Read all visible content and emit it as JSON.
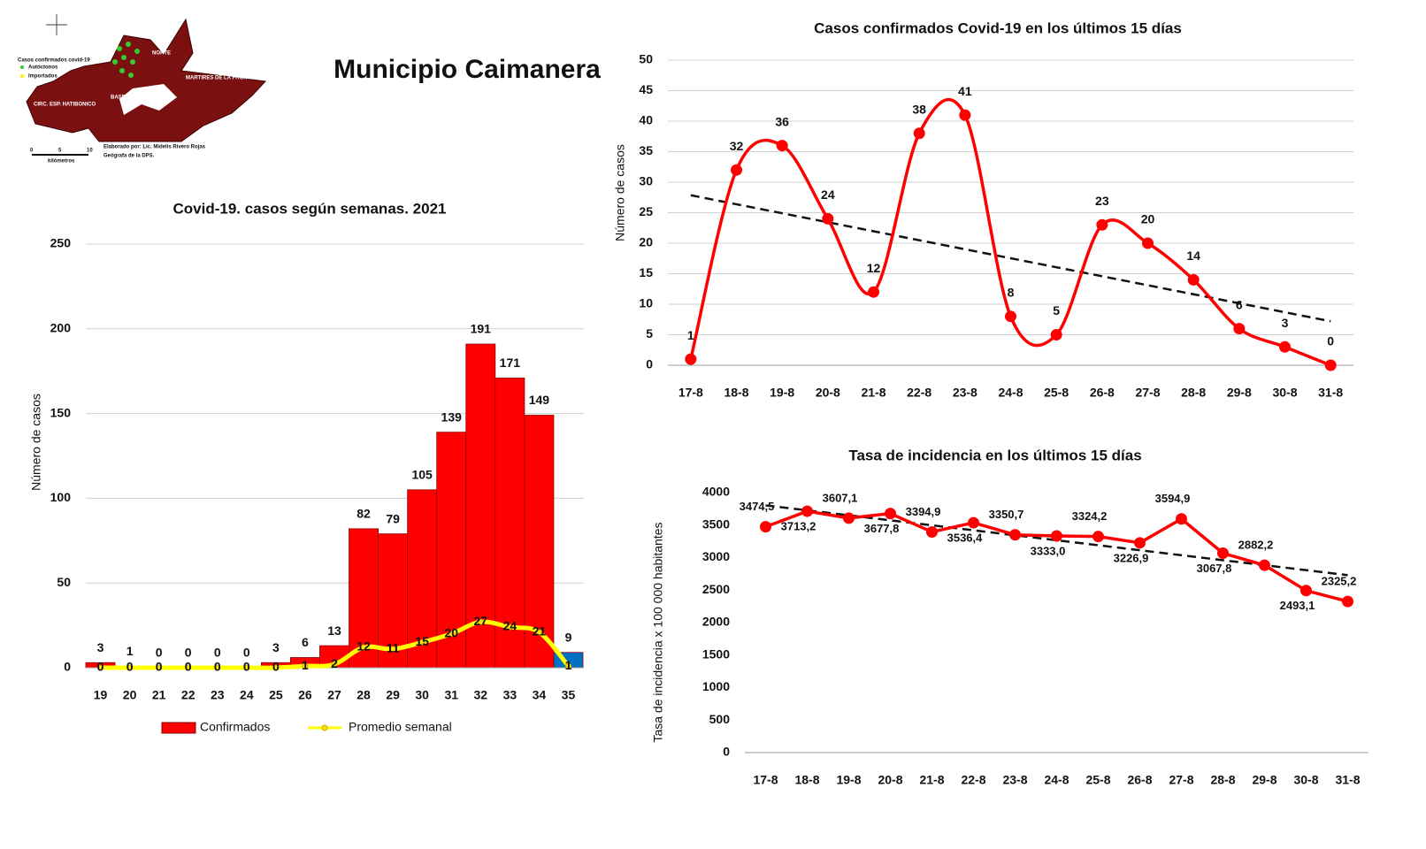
{
  "page_title": "Municipio Caimanera",
  "map": {
    "legend_title": "Casos confirmados covid-19",
    "legend_items": [
      "Autóctonos",
      "Importados"
    ],
    "regions": [
      "NORTE",
      "MARTIRES DE LA FRONTERA",
      "BASE NAVAL",
      "CIRC. ESP. HATIBONICO"
    ],
    "credit": [
      "Elaborado por: Lic. Midelis Rivero Rojas",
      "Geógrafa de la DPS."
    ],
    "scale": [
      "0",
      "5",
      "10"
    ],
    "scale_unit": "kilómetros"
  },
  "chart_data": [
    {
      "type": "bar",
      "title": "Covid-19. casos según semanas. 2021",
      "y_label": "Número de casos",
      "categories": [
        "19",
        "20",
        "21",
        "22",
        "23",
        "24",
        "25",
        "26",
        "27",
        "28",
        "29",
        "30",
        "31",
        "32",
        "33",
        "34",
        "35"
      ],
      "series": [
        {
          "name": "Confirmados",
          "values": [
            3,
            1,
            0,
            0,
            0,
            0,
            3,
            6,
            13,
            82,
            79,
            105,
            139,
            191,
            171,
            149,
            9
          ],
          "colors": [
            "#ff0000",
            "#ff0000",
            "#ff0000",
            "#ff0000",
            "#ff0000",
            "#ff0000",
            "#ff0000",
            "#ff0000",
            "#ff0000",
            "#ff0000",
            "#ff0000",
            "#ff0000",
            "#ff0000",
            "#ff0000",
            "#ff0000",
            "#ff0000",
            "#0070c0"
          ]
        },
        {
          "name": "Promedio semanal",
          "type": "line",
          "color": "#ffff00",
          "values": [
            0,
            0,
            0,
            0,
            0,
            0,
            0,
            1,
            2,
            12,
            11,
            15,
            20,
            27,
            24,
            21,
            1
          ]
        }
      ],
      "ylim": [
        0,
        250
      ],
      "yticks": [
        0,
        50,
        100,
        150,
        200,
        250
      ],
      "grid": true,
      "legend": "bottom",
      "smooth": true
    },
    {
      "type": "line",
      "title": "Casos confirmados  Covid-19  en los últimos 15 días",
      "y_label": "Número de casos",
      "categories": [
        "17-8",
        "18-8",
        "19-8",
        "20-8",
        "21-8",
        "22-8",
        "23-8",
        "24-8",
        "25-8",
        "26-8",
        "27-8",
        "28-8",
        "29-8",
        "30-8",
        "31-8"
      ],
      "values": [
        1,
        32,
        36,
        24,
        12,
        38,
        41,
        8,
        5,
        23,
        20,
        14,
        6,
        3,
        0
      ],
      "color": "#ff0000",
      "ylim": [
        0,
        50
      ],
      "yticks": [
        0,
        5,
        10,
        15,
        20,
        25,
        30,
        35,
        40,
        45,
        50
      ],
      "grid": true,
      "smooth": true,
      "trendline": true
    },
    {
      "type": "line",
      "title": "Tasa de incidencia  en los últimos 15 días",
      "y_label": "Tasa de incidencia x 100 000 habitantes",
      "categories": [
        "17-8",
        "18-8",
        "19-8",
        "20-8",
        "21-8",
        "22-8",
        "23-8",
        "24-8",
        "25-8",
        "26-8",
        "27-8",
        "28-8",
        "29-8",
        "30-8",
        "31-8"
      ],
      "values": [
        3474.5,
        3713.2,
        3607.1,
        3677.8,
        3394.9,
        3536.4,
        3350.7,
        3333.0,
        3324.2,
        3226.9,
        3594.9,
        3067.8,
        2882.2,
        2493.1,
        2325.2
      ],
      "value_labels": [
        "3474,5",
        "3713,2",
        "3607,1",
        "3677,8",
        "3394,9",
        "3536,4",
        "3350,7",
        "3333,0",
        "3324,2",
        "3226,9",
        "3594,9",
        "3067,8",
        "2882,2",
        "2493,1",
        "2325,2"
      ],
      "color": "#ff0000",
      "ylim": [
        0,
        4000
      ],
      "yticks": [
        0,
        500,
        1000,
        1500,
        2000,
        2500,
        3000,
        3500,
        4000
      ],
      "grid": false,
      "smooth": false,
      "trendline": true
    }
  ]
}
